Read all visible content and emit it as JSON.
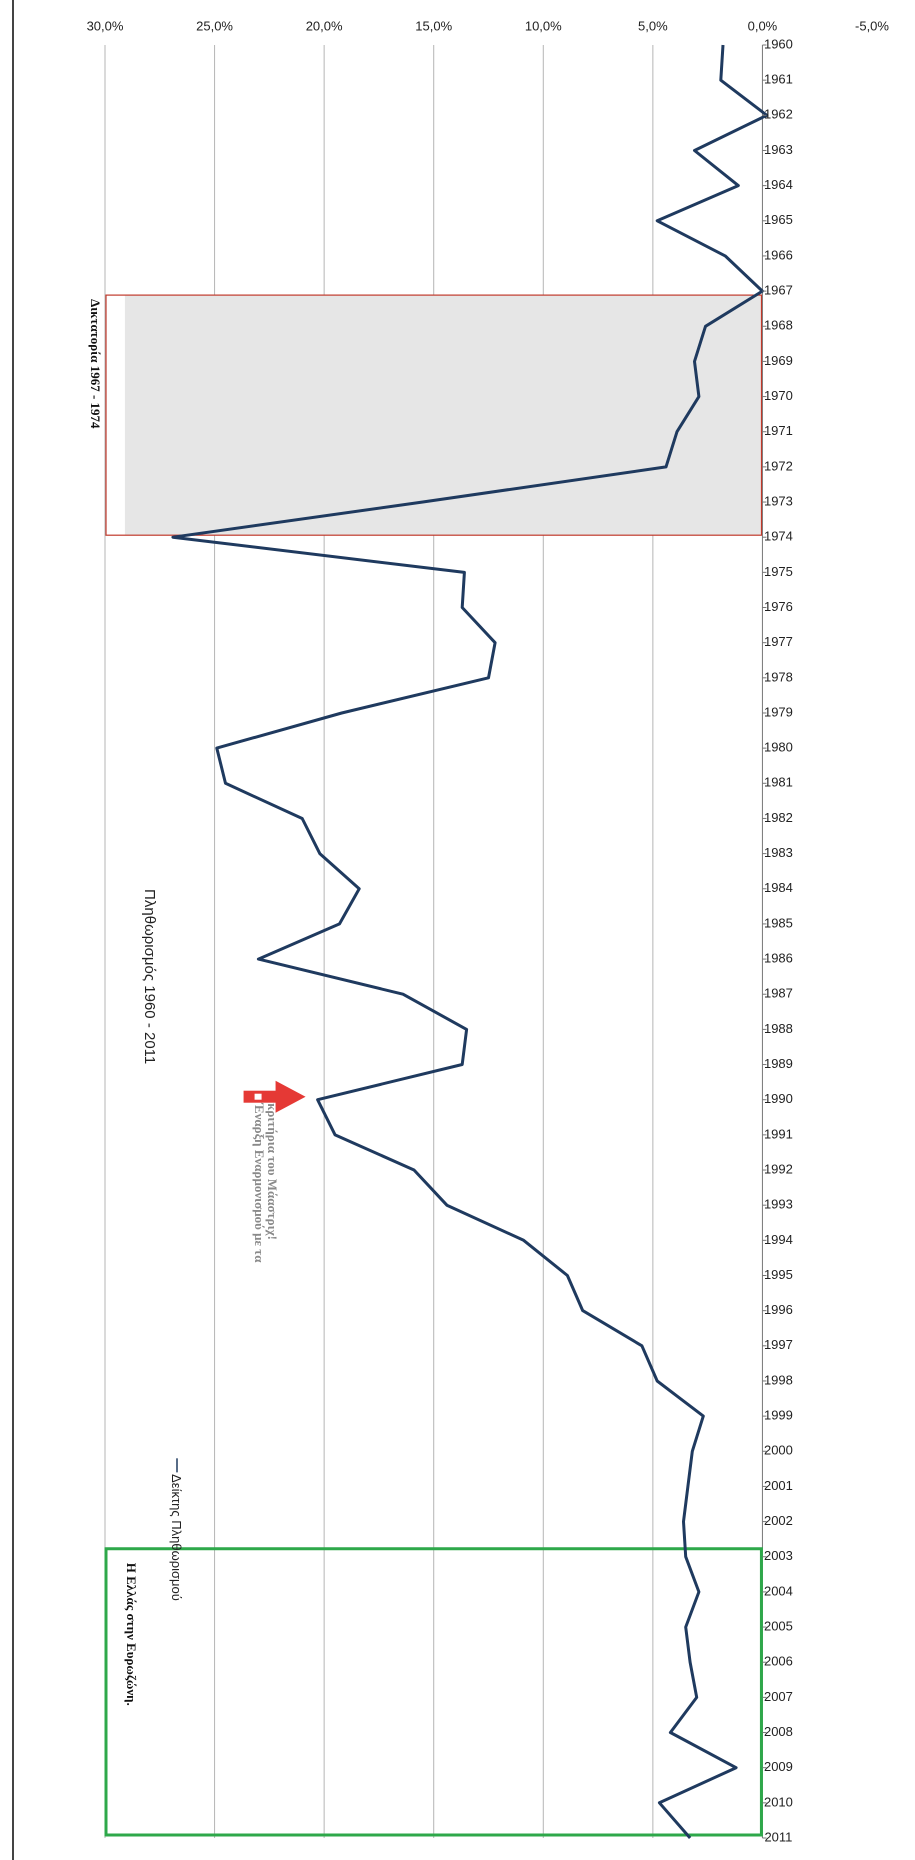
{
  "chart_data": {
    "type": "line",
    "title": "Πληθωρισμός 1960 - 2011",
    "xlabel": "",
    "ylabel": "",
    "orientation": "rotated 90° clockwise (time runs top to bottom)",
    "ylim": [
      -5,
      30
    ],
    "yticks": [
      "30,0%",
      "25,0%",
      "20,0%",
      "15,0%",
      "10,0%",
      "5,0%",
      "0,0%",
      "-5,0%"
    ],
    "ytick_values": [
      30,
      25,
      20,
      15,
      10,
      5,
      0,
      -5
    ],
    "grid": true,
    "legend_position": "top-right",
    "categories": [
      "1960",
      "1961",
      "1962",
      "1963",
      "1964",
      "1965",
      "1966",
      "1967",
      "1968",
      "1969",
      "1970",
      "1971",
      "1972",
      "1973",
      "1974",
      "1975",
      "1976",
      "1977",
      "1978",
      "1979",
      "1980",
      "1981",
      "1982",
      "1983",
      "1984",
      "1985",
      "1986",
      "1987",
      "1988",
      "1989",
      "1990",
      "1991",
      "1992",
      "1993",
      "1994",
      "1995",
      "1996",
      "1997",
      "1998",
      "1999",
      "2000",
      "2001",
      "2002",
      "2003",
      "2004",
      "2005",
      "2006",
      "2007",
      "2008",
      "2009",
      "2010",
      "2011"
    ],
    "series": [
      {
        "name": "Δείκτης Πληθωρισμού",
        "color": "#1f3a5f",
        "values": [
          1.8,
          1.9,
          -0.2,
          3.1,
          1.1,
          4.8,
          1.7,
          0.0,
          2.6,
          3.1,
          2.9,
          3.9,
          4.4,
          15.5,
          26.9,
          13.6,
          13.7,
          12.2,
          12.5,
          19.2,
          24.9,
          24.5,
          21.0,
          20.2,
          18.4,
          19.3,
          23.0,
          16.4,
          13.5,
          13.7,
          20.3,
          19.5,
          15.9,
          14.4,
          10.9,
          8.9,
          8.2,
          5.5,
          4.8,
          2.7,
          3.2,
          3.4,
          3.6,
          3.5,
          2.9,
          3.5,
          3.3,
          3.0,
          4.2,
          1.2,
          4.7,
          3.3
        ]
      }
    ],
    "annotations": {
      "dictatorship_label": "Δικτατορία 1967 - 1974",
      "dictatorship_range": [
        "1967",
        "1974"
      ],
      "maastricht_label_line1": "Έναρξη Εναρμονισμού με τα",
      "maastricht_label_line2": "κριτήρια του Μάαστριχ!",
      "maastricht_year": "1990",
      "eurozone_label": "Η Ελλάς στην Ευρωζώνη.",
      "eurozone_range": [
        "2003",
        "2011"
      ]
    }
  }
}
